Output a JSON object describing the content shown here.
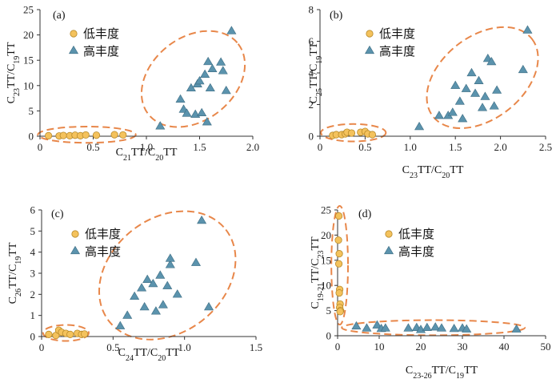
{
  "colors": {
    "low_fill": "#f4c25c",
    "low_stroke": "#b88a2a",
    "high_fill": "#5b93ad",
    "high_stroke": "#3c6c82",
    "ellipse": "#e8874a"
  },
  "chart_data": [
    {
      "type": "scatter",
      "panel_label": "(a)",
      "xlabel": [
        [
          "C",
          ""
        ],
        [
          "21",
          "sub"
        ],
        [
          "TT/C",
          ""
        ],
        [
          "20",
          "sub"
        ],
        [
          "TT",
          ""
        ]
      ],
      "ylabel": [
        [
          "C",
          ""
        ],
        [
          "23",
          "sub"
        ],
        [
          "TT/C",
          ""
        ],
        [
          "19",
          "sub"
        ],
        [
          "TT",
          ""
        ]
      ],
      "xlim": [
        0,
        2.0
      ],
      "ylim": [
        0,
        25
      ],
      "xticks": [
        0,
        0.5,
        1.0,
        1.5,
        2.0
      ],
      "xtick_labels": [
        "0",
        "0.5",
        "1.0",
        "1.5",
        "2.0"
      ],
      "yticks": [
        0,
        5,
        10,
        15,
        20,
        25
      ],
      "ytick_labels": [
        "0",
        "5",
        "10",
        "15",
        "20",
        "25"
      ],
      "legend": [
        "低丰度",
        "高丰度"
      ],
      "series": [
        {
          "name": "低丰度",
          "marker": "circle",
          "points": [
            [
              0.08,
              0.1
            ],
            [
              0.18,
              0.05
            ],
            [
              0.22,
              0.15
            ],
            [
              0.28,
              0.1
            ],
            [
              0.33,
              0.2
            ],
            [
              0.38,
              0.1
            ],
            [
              0.43,
              0.25
            ],
            [
              0.53,
              0.2
            ],
            [
              0.7,
              0.3
            ],
            [
              0.78,
              0.25
            ]
          ]
        },
        {
          "name": "高丰度",
          "marker": "triangle",
          "points": [
            [
              1.13,
              2.0
            ],
            [
              1.32,
              7.3
            ],
            [
              1.35,
              5.3
            ],
            [
              1.38,
              4.5
            ],
            [
              1.42,
              9.5
            ],
            [
              1.46,
              4.3
            ],
            [
              1.48,
              10.3
            ],
            [
              1.5,
              10.9
            ],
            [
              1.52,
              4.6
            ],
            [
              1.55,
              12.2
            ],
            [
              1.57,
              2.8
            ],
            [
              1.58,
              14.7
            ],
            [
              1.6,
              9.5
            ],
            [
              1.62,
              13.3
            ],
            [
              1.7,
              14.6
            ],
            [
              1.72,
              12.9
            ],
            [
              1.75,
              9.0
            ],
            [
              1.8,
              20.8
            ]
          ]
        }
      ],
      "ellipses": [
        {
          "cx": 0.44,
          "cy": 0.3,
          "rx": 0.46,
          "ry": 1.6
        },
        {
          "cx": 1.44,
          "cy": 11.3,
          "rx": 0.41,
          "ry": 11.6
        }
      ]
    },
    {
      "type": "scatter",
      "panel_label": "(b)",
      "xlabel": [
        [
          "C",
          ""
        ],
        [
          "23",
          "sub"
        ],
        [
          "TT/C",
          ""
        ],
        [
          "20",
          "sub"
        ],
        [
          "TT",
          ""
        ]
      ],
      "ylabel": [
        [
          "C",
          ""
        ],
        [
          "25",
          "sub"
        ],
        [
          "TT/C",
          ""
        ],
        [
          "19",
          "sub"
        ],
        [
          "TT",
          ""
        ]
      ],
      "xlim": [
        0,
        2.5
      ],
      "ylim": [
        0,
        8
      ],
      "xticks": [
        0,
        0.5,
        1.0,
        1.5,
        2.0,
        2.5
      ],
      "xtick_labels": [
        "0",
        "0.5",
        "1.0",
        "1.5",
        "2.0",
        "2.5"
      ],
      "yticks": [
        0,
        2,
        4,
        6,
        8
      ],
      "ytick_labels": [
        "0",
        "2",
        "4",
        "6",
        "8"
      ],
      "legend": [
        "低丰度",
        "高丰度"
      ],
      "series": [
        {
          "name": "低丰度",
          "marker": "circle",
          "points": [
            [
              0.14,
              0.05
            ],
            [
              0.18,
              0.1
            ],
            [
              0.24,
              0.1
            ],
            [
              0.28,
              0.15
            ],
            [
              0.3,
              0.25
            ],
            [
              0.35,
              0.2
            ],
            [
              0.45,
              0.25
            ],
            [
              0.5,
              0.3
            ],
            [
              0.53,
              0.15
            ],
            [
              0.58,
              0.1
            ]
          ]
        },
        {
          "name": "高丰度",
          "marker": "triangle",
          "points": [
            [
              1.1,
              0.6
            ],
            [
              1.32,
              1.3
            ],
            [
              1.42,
              1.3
            ],
            [
              1.47,
              1.5
            ],
            [
              1.5,
              3.2
            ],
            [
              1.55,
              2.2
            ],
            [
              1.58,
              1.1
            ],
            [
              1.62,
              3.0
            ],
            [
              1.68,
              4.0
            ],
            [
              1.72,
              2.7
            ],
            [
              1.76,
              3.5
            ],
            [
              1.8,
              1.8
            ],
            [
              1.83,
              2.5
            ],
            [
              1.86,
              4.9
            ],
            [
              1.9,
              4.7
            ],
            [
              1.93,
              1.9
            ],
            [
              1.96,
              2.9
            ],
            [
              2.25,
              4.2
            ],
            [
              2.3,
              6.7
            ]
          ]
        }
      ],
      "ellipses": [
        {
          "cx": 0.37,
          "cy": 0.22,
          "rx": 0.36,
          "ry": 0.55
        },
        {
          "cx": 1.8,
          "cy": 3.7,
          "rx": 0.48,
          "ry": 4.3
        }
      ]
    },
    {
      "type": "scatter",
      "panel_label": "(c)",
      "xlabel": [
        [
          "C",
          ""
        ],
        [
          "24",
          "sub"
        ],
        [
          "TT/C",
          ""
        ],
        [
          "20",
          "sub"
        ],
        [
          "TT",
          ""
        ]
      ],
      "ylabel": [
        [
          "C",
          ""
        ],
        [
          "26",
          "sub"
        ],
        [
          "TT/C",
          ""
        ],
        [
          "19",
          "sub"
        ],
        [
          "TT",
          ""
        ]
      ],
      "xlim": [
        0,
        1.5
      ],
      "ylim": [
        0,
        6
      ],
      "xticks": [
        0,
        0.5,
        1.0,
        1.5
      ],
      "xtick_labels": [
        "0",
        "0.5",
        "1.0",
        "1.5"
      ],
      "yticks": [
        0,
        1,
        2,
        3,
        4,
        5,
        6
      ],
      "ytick_labels": [
        "0",
        "1",
        "2",
        "3",
        "4",
        "5",
        "6"
      ],
      "legend": [
        "低丰度",
        "高丰度"
      ],
      "series": [
        {
          "name": "低丰度",
          "marker": "circle",
          "points": [
            [
              0.05,
              0.1
            ],
            [
              0.1,
              0.05
            ],
            [
              0.12,
              0.3
            ],
            [
              0.14,
              0.2
            ],
            [
              0.17,
              0.15
            ],
            [
              0.2,
              0.1
            ],
            [
              0.25,
              0.15
            ],
            [
              0.28,
              0.1
            ],
            [
              0.3,
              0.12
            ]
          ]
        },
        {
          "name": "高丰度",
          "marker": "triangle",
          "points": [
            [
              0.55,
              0.5
            ],
            [
              0.6,
              1.0
            ],
            [
              0.65,
              1.9
            ],
            [
              0.7,
              2.3
            ],
            [
              0.72,
              1.4
            ],
            [
              0.74,
              2.7
            ],
            [
              0.78,
              2.5
            ],
            [
              0.8,
              1.2
            ],
            [
              0.83,
              2.9
            ],
            [
              0.85,
              1.5
            ],
            [
              0.88,
              2.4
            ],
            [
              0.9,
              3.4
            ],
            [
              0.9,
              3.7
            ],
            [
              0.95,
              2.0
            ],
            [
              1.08,
              3.5
            ],
            [
              1.12,
              5.5
            ],
            [
              1.17,
              1.4
            ]
          ]
        }
      ],
      "ellipses": [
        {
          "cx": 0.17,
          "cy": 0.17,
          "rx": 0.16,
          "ry": 0.38
        },
        {
          "cx": 0.88,
          "cy": 2.9,
          "rx": 0.42,
          "ry": 3.5
        }
      ]
    },
    {
      "type": "scatter",
      "panel_label": "(d)",
      "xlabel": [
        [
          "C",
          ""
        ],
        [
          "23-26",
          "sub"
        ],
        [
          "TT/C",
          ""
        ],
        [
          "19",
          "sub"
        ],
        [
          "TT",
          ""
        ]
      ],
      "ylabel": [
        [
          "C",
          ""
        ],
        [
          "19-21",
          "sub"
        ],
        [
          "TT/C",
          ""
        ],
        [
          "23",
          "sub"
        ],
        [
          "TT",
          ""
        ]
      ],
      "xlim": [
        0,
        50
      ],
      "ylim": [
        0,
        25
      ],
      "xticks": [
        0,
        10,
        20,
        30,
        40,
        50
      ],
      "xtick_labels": [
        "0",
        "10",
        "20",
        "30",
        "40",
        "50"
      ],
      "yticks": [
        0,
        5,
        10,
        15,
        20,
        25
      ],
      "ytick_labels": [
        "0",
        "5",
        "10",
        "15",
        "20",
        "25"
      ],
      "legend": [
        "低丰度",
        "高丰度"
      ],
      "series": [
        {
          "name": "低丰度",
          "marker": "circle",
          "points": [
            [
              0.3,
              23.8
            ],
            [
              0.2,
              19.0
            ],
            [
              0.4,
              16.3
            ],
            [
              0.3,
              14.3
            ],
            [
              0.5,
              9.2
            ],
            [
              0.4,
              8.5
            ],
            [
              0.6,
              6.3
            ],
            [
              0.5,
              5.6
            ],
            [
              0.7,
              5.0
            ],
            [
              0.6,
              4.8
            ]
          ]
        },
        {
          "name": "高丰度",
          "marker": "triangle",
          "points": [
            [
              4.5,
              1.9
            ],
            [
              7.0,
              1.5
            ],
            [
              9.5,
              2.1
            ],
            [
              10.5,
              1.4
            ],
            [
              11.5,
              1.5
            ],
            [
              17.0,
              1.5
            ],
            [
              19.0,
              1.6
            ],
            [
              20.0,
              1.2
            ],
            [
              21.5,
              1.6
            ],
            [
              23.5,
              1.7
            ],
            [
              25.0,
              1.5
            ],
            [
              28.0,
              1.4
            ],
            [
              30.0,
              1.5
            ],
            [
              31.0,
              1.3
            ],
            [
              43.0,
              1.3
            ]
          ]
        }
      ],
      "ellipses": [
        {
          "cx": 0.5,
          "cy": 14.0,
          "rx": 2.0,
          "ry": 11.8
        },
        {
          "cx": 23.0,
          "cy": 1.6,
          "rx": 22.0,
          "ry": 1.5
        }
      ]
    }
  ]
}
